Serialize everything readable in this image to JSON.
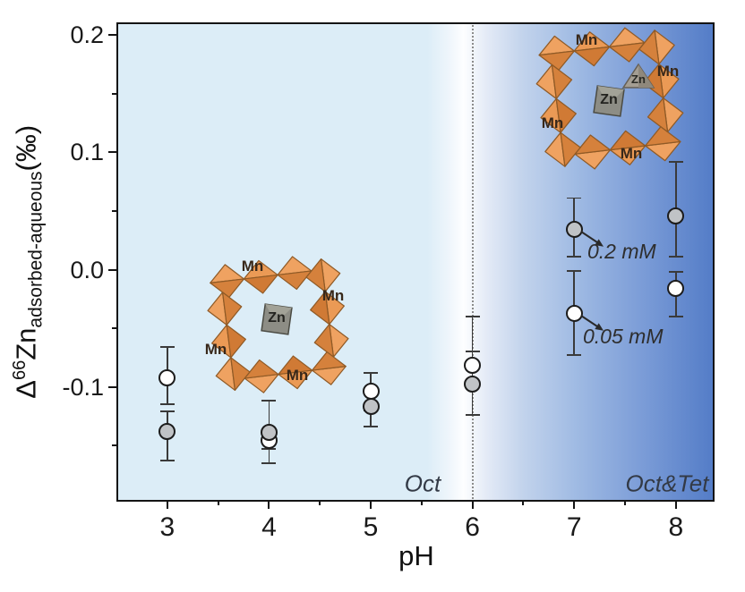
{
  "figure": {
    "xlabel": "pH",
    "ylabel": {
      "prefix": "Δ",
      "superscript": "66",
      "element": "Zn",
      "subscript": "adsorbed-aqueous",
      "suffix": "(‰)"
    },
    "region_left_label": "Oct",
    "region_right_label": "Oct&Tet",
    "annotations": {
      "a1": "0.2 mM",
      "a2": "0.05 mM"
    }
  },
  "structures": {
    "left_ring": {
      "mn": [
        "Mn",
        "Mn",
        "Mn",
        "Mn"
      ],
      "zn_oct": "Zn"
    },
    "right_ring": {
      "mn": [
        "Mn",
        "Mn",
        "Mn",
        "Mn"
      ],
      "zn_oct": "Zn",
      "zn_tet": "Zn"
    }
  },
  "colors": {
    "bg_left": "#dcedf7",
    "bg_right": "#537cc7",
    "axis": "#141414",
    "error_bar": "#3a3a3a",
    "marker_open_fill": "#ffffff",
    "marker_filled_fill": "#c0c3c6",
    "polyhedra_light": "#efa261",
    "polyhedra_dark": "#d5813c",
    "zn_gray": "#8d8d85"
  },
  "chart_data": {
    "type": "scatter",
    "title": "",
    "xlabel": "pH",
    "ylabel": "Δ66Zn adsorbed-aqueous (‰)",
    "xlim": [
      2.5,
      8.38
    ],
    "ylim": [
      -0.198,
      0.211
    ],
    "grid": false,
    "legend_position": "none",
    "divider_ph": 6,
    "x_major_ticks": [
      {
        "value": 3,
        "label": "3"
      },
      {
        "value": 4,
        "label": "4"
      },
      {
        "value": 5,
        "label": "5"
      },
      {
        "value": 6,
        "label": "6"
      },
      {
        "value": 7,
        "label": "7"
      },
      {
        "value": 8,
        "label": "8"
      }
    ],
    "x_minor_ticks": [
      3.5,
      4.5,
      5.5,
      6.5,
      7.5
    ],
    "y_major_ticks": [
      {
        "value": 0.2,
        "label": "0.2"
      },
      {
        "value": 0.1,
        "label": "0.1"
      },
      {
        "value": 0.0,
        "label": "0.0"
      },
      {
        "value": -0.1,
        "label": "-0.1"
      }
    ],
    "y_minor_ticks": [
      0.15,
      0.05,
      -0.05,
      -0.15
    ],
    "series": [
      {
        "name": "0.05 mM",
        "marker": "open-circle",
        "fill": "#ffffff",
        "points": [
          {
            "ph": 3,
            "y": -0.092,
            "y_hi": -0.066,
            "y_lo": -0.115
          },
          {
            "ph": 4,
            "y": -0.146,
            "y_hi": -0.112,
            "y_lo": -0.165
          },
          {
            "ph": 5,
            "y": -0.104,
            "y_hi": -0.088,
            "y_lo": -0.12
          },
          {
            "ph": 6,
            "y": -0.082,
            "y_hi": -0.04,
            "y_lo": -0.124
          },
          {
            "ph": 7,
            "y": -0.037,
            "y_hi": -0.001,
            "y_lo": -0.073
          },
          {
            "ph": 8,
            "y": -0.016,
            "y_hi": -0.002,
            "y_lo": -0.04
          }
        ]
      },
      {
        "name": "0.2 mM",
        "marker": "filled-circle",
        "fill": "#c0c3c6",
        "points": [
          {
            "ph": 3,
            "y": -0.138,
            "y_hi": -0.121,
            "y_lo": -0.163
          },
          {
            "ph": 4,
            "y": -0.139,
            "y_hi": -0.112,
            "y_lo": -0.153
          },
          {
            "ph": 5,
            "y": -0.117,
            "y_hi": -0.101,
            "y_lo": -0.134
          },
          {
            "ph": 6,
            "y": -0.098,
            "y_hi": -0.07,
            "y_lo": -0.124
          },
          {
            "ph": 7,
            "y": 0.034,
            "y_hi": 0.061,
            "y_lo": 0.011
          },
          {
            "ph": 8,
            "y": 0.046,
            "y_hi": 0.092,
            "y_lo": 0.011
          }
        ]
      }
    ]
  }
}
